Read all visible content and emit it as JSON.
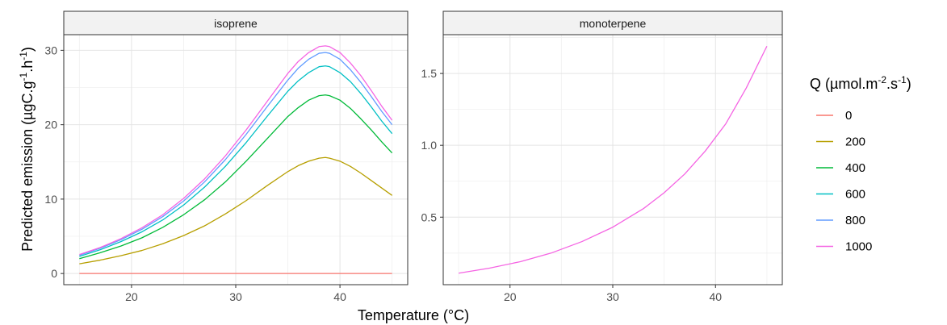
{
  "chart_data": {
    "type": "line",
    "xlabel": "Temperature (°C)",
    "ylabel": "Predicted emission (µgC.g",
    "ylabel_sup1": "-1",
    "ylabel_mid": ".h",
    "ylabel_sup2": "-1",
    "ylabel_end": ")",
    "legend": {
      "title_main": "Q (µmol.m",
      "title_sup1": "-2",
      "title_mid": ".s",
      "title_sup2": "-1",
      "title_end": ")",
      "placement": "right",
      "entries": [
        {
          "label": "0",
          "color": "#F8766D"
        },
        {
          "label": "200",
          "color": "#B79F00"
        },
        {
          "label": "400",
          "color": "#00BA38"
        },
        {
          "label": "600",
          "color": "#00BFC4"
        },
        {
          "label": "800",
          "color": "#619CFF"
        },
        {
          "label": "1000",
          "color": "#F564E3"
        }
      ]
    },
    "grid": true,
    "panels": [
      {
        "strip": "isoprene",
        "xlim": [
          13.5,
          46.5
        ],
        "ylim": [
          -1.5,
          32.1
        ],
        "x_ticks": [
          20,
          30,
          40
        ],
        "x_tick_labels": [
          "20",
          "30",
          "40"
        ],
        "y_ticks": [
          0,
          10,
          20,
          30
        ],
        "y_tick_labels": [
          "0",
          "10",
          "20",
          "30"
        ],
        "x": [
          15,
          17,
          19,
          21,
          23,
          25,
          27,
          29,
          31,
          33,
          35,
          36,
          37,
          38,
          38.6,
          39,
          40,
          41,
          42,
          43,
          44,
          45
        ],
        "series": [
          {
            "name": "0",
            "color": "#F8766D",
            "values": [
              0,
              0,
              0,
              0,
              0,
              0,
              0,
              0,
              0,
              0,
              0,
              0,
              0,
              0,
              0,
              0,
              0,
              0,
              0,
              0,
              0,
              0
            ]
          },
          {
            "name": "200",
            "color": "#B79F00",
            "values": [
              1.3,
              1.8,
              2.4,
              3.1,
              4.0,
              5.1,
              6.4,
              8.0,
              9.8,
              11.8,
              13.7,
              14.5,
              15.1,
              15.5,
              15.6,
              15.5,
              15.1,
              14.4,
              13.5,
              12.5,
              11.5,
              10.5
            ]
          },
          {
            "name": "400",
            "color": "#00BA38",
            "values": [
              2.0,
              2.8,
              3.7,
              4.8,
              6.2,
              7.9,
              9.9,
              12.3,
              15.1,
              18.1,
              21.1,
              22.3,
              23.3,
              23.9,
              24.0,
              23.9,
              23.3,
              22.2,
              20.8,
              19.3,
              17.7,
              16.2
            ]
          },
          {
            "name": "600",
            "color": "#00BFC4",
            "values": [
              2.3,
              3.2,
              4.3,
              5.6,
              7.2,
              9.2,
              11.6,
              14.4,
              17.6,
              21.1,
              24.5,
              25.9,
              27.0,
              27.8,
              27.9,
              27.8,
              27.0,
              25.8,
              24.2,
              22.4,
              20.5,
              18.8
            ]
          },
          {
            "name": "800",
            "color": "#619CFF",
            "values": [
              2.45,
              3.4,
              4.55,
              5.95,
              7.65,
              9.75,
              12.3,
              15.3,
              18.7,
              22.4,
              26.0,
              27.6,
              28.8,
              29.6,
              29.7,
              29.6,
              28.8,
              27.4,
              25.7,
              23.8,
              21.8,
              20.0
            ]
          },
          {
            "name": "1000",
            "color": "#F564E3",
            "values": [
              2.55,
              3.5,
              4.7,
              6.15,
              7.9,
              10.1,
              12.7,
              15.8,
              19.3,
              23.1,
              26.9,
              28.5,
              29.7,
              30.5,
              30.6,
              30.5,
              29.7,
              28.3,
              26.6,
              24.6,
              22.5,
              20.6
            ]
          }
        ]
      },
      {
        "strip": "monoterpene",
        "xlim": [
          13.5,
          46.5
        ],
        "ylim": [
          0.03,
          1.77
        ],
        "x_ticks": [
          20,
          30,
          40
        ],
        "x_tick_labels": [
          "20",
          "30",
          "40"
        ],
        "y_ticks": [
          0.5,
          1.0,
          1.5
        ],
        "y_tick_labels": [
          "0.5",
          "1.0",
          "1.5"
        ],
        "x": [
          15,
          18,
          21,
          24,
          27,
          30,
          33,
          35,
          37,
          39,
          41,
          43,
          45
        ],
        "series": [
          {
            "name": "1000",
            "color": "#F564E3",
            "values": [
              0.11,
              0.145,
              0.19,
              0.25,
              0.33,
              0.43,
              0.56,
              0.67,
              0.8,
              0.96,
              1.15,
              1.4,
              1.69
            ]
          }
        ]
      }
    ]
  }
}
